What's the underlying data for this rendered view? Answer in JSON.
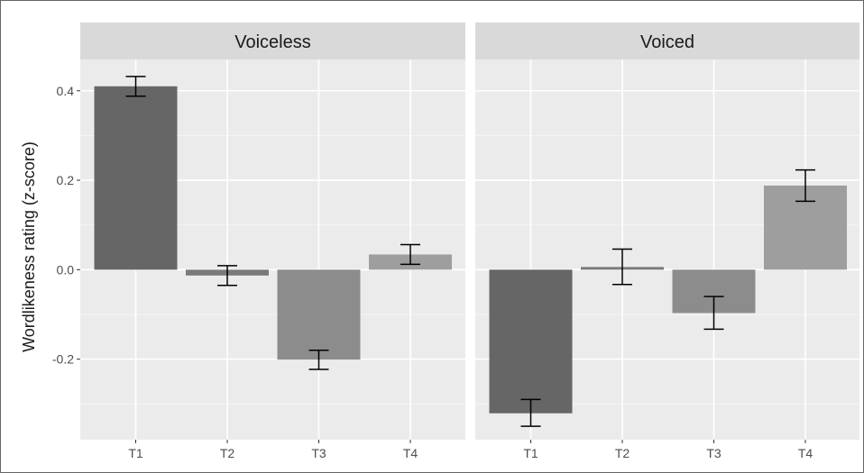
{
  "chart_data": {
    "type": "bar",
    "ylabel": "Wordlikeness rating (z-score)",
    "xlabel": "",
    "y_ticks": [
      "-0.2",
      "0.0",
      "0.2",
      "0.4"
    ],
    "ylim": [
      -0.38,
      0.47
    ],
    "grid": true,
    "categories": [
      "T1",
      "T2",
      "T3",
      "T4"
    ],
    "bar_colors": [
      "#666666",
      "#7a7a7a",
      "#8c8c8c",
      "#9e9e9e"
    ],
    "panels": [
      {
        "label": "Voiceless",
        "bars": [
          {
            "category": "T1",
            "value": 0.41,
            "err_low": 0.388,
            "err_high": 0.432
          },
          {
            "category": "T2",
            "value": -0.013,
            "err_low": -0.035,
            "err_high": 0.009
          },
          {
            "category": "T3",
            "value": -0.201,
            "err_low": -0.223,
            "err_high": -0.18
          },
          {
            "category": "T4",
            "value": 0.034,
            "err_low": 0.012,
            "err_high": 0.056
          }
        ]
      },
      {
        "label": "Voiced",
        "bars": [
          {
            "category": "T1",
            "value": -0.321,
            "err_low": -0.35,
            "err_high": -0.29
          },
          {
            "category": "T2",
            "value": 0.006,
            "err_low": -0.033,
            "err_high": 0.046
          },
          {
            "category": "T3",
            "value": -0.097,
            "err_low": -0.133,
            "err_high": -0.06
          },
          {
            "category": "T4",
            "value": 0.188,
            "err_low": 0.153,
            "err_high": 0.223
          }
        ]
      }
    ]
  }
}
